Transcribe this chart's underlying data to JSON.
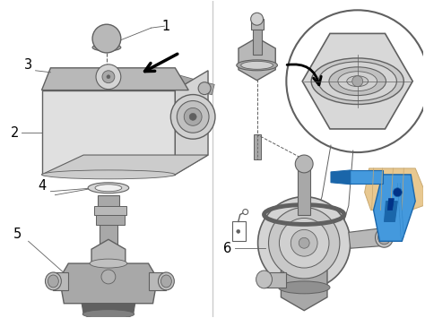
{
  "background_color": "#ffffff",
  "gray_light": "#d4d4d4",
  "gray_mid": "#a8a8a8",
  "gray_dark": "#606060",
  "gray_body": "#b8b8b8",
  "gray_face": "#e0e0e0",
  "blue_color": "#4499dd",
  "blue_dark": "#1a66aa",
  "skin_color": "#e8c890",
  "skin_dark": "#c8a870",
  "label_fontsize": 10.5
}
